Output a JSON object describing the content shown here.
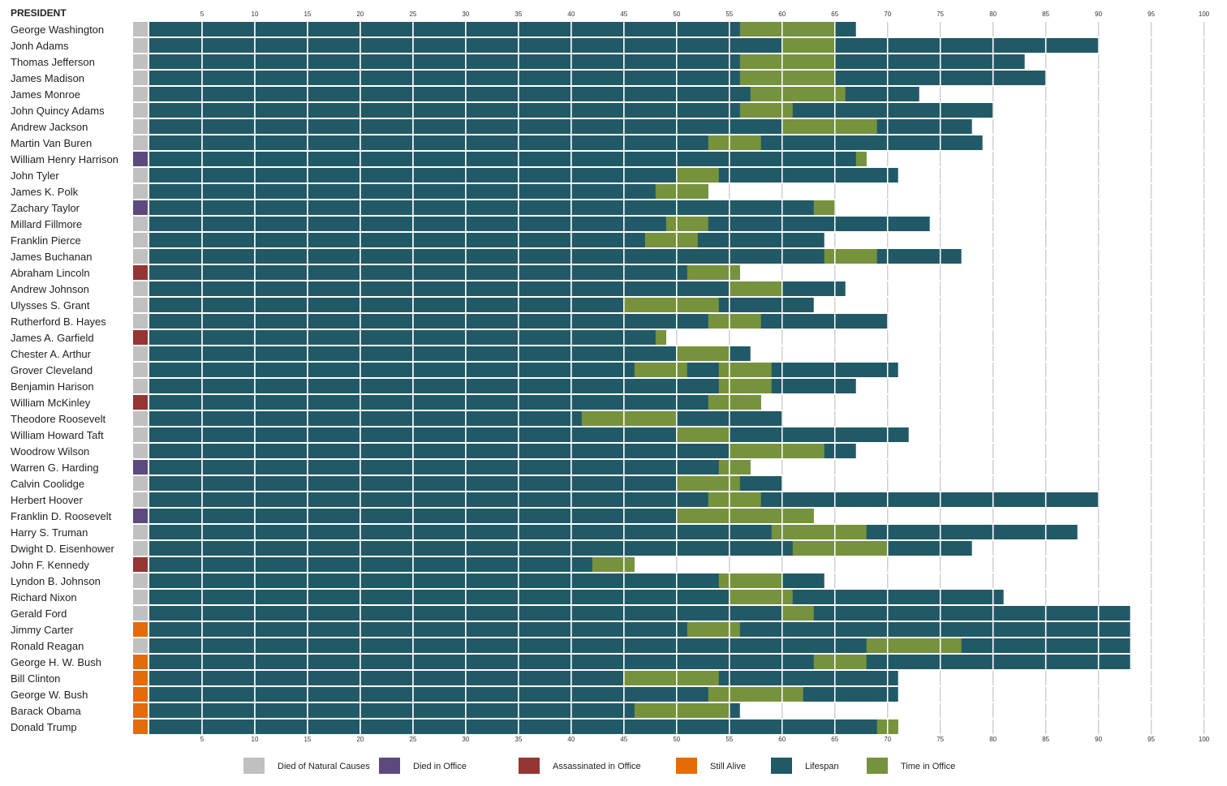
{
  "chart_data": {
    "type": "bar",
    "column_header": "PRESIDENT",
    "x_ticks": [
      5,
      10,
      15,
      20,
      25,
      30,
      35,
      40,
      45,
      50,
      55,
      60,
      65,
      70,
      75,
      80,
      85,
      90,
      95,
      100
    ],
    "xlim": [
      0,
      100
    ],
    "grid": "vertical",
    "legend_position": "bottom",
    "colors": {
      "natural": "#c0c0c0",
      "died_in_office": "#5c4a7e",
      "assassinated": "#943634",
      "alive": "#e36c09",
      "lifespan": "#215967",
      "office": "#76923c",
      "grid": "#d0d0d0"
    },
    "legend": [
      {
        "key": "natural",
        "label": "Died of Natural Causes"
      },
      {
        "key": "died_in_office",
        "label": "Died in Office"
      },
      {
        "key": "assassinated",
        "label": "Assassinated in Office"
      },
      {
        "key": "alive",
        "label": "Still Alive"
      },
      {
        "key": "lifespan",
        "label": "Lifespan"
      },
      {
        "key": "office",
        "label": "Time in Office"
      }
    ],
    "series": [
      {
        "name": "Lifespan",
        "field": "age"
      },
      {
        "name": "Time in Office",
        "field": "terms"
      }
    ],
    "presidents": [
      {
        "name": "George Washington",
        "status": "natural",
        "age": 67,
        "terms": [
          [
            56,
            65
          ]
        ]
      },
      {
        "name": "Jonh Adams",
        "status": "natural",
        "age": 90,
        "terms": [
          [
            60,
            65
          ]
        ]
      },
      {
        "name": "Thomas Jefferson",
        "status": "natural",
        "age": 83,
        "terms": [
          [
            56,
            65
          ]
        ]
      },
      {
        "name": "James Madison",
        "status": "natural",
        "age": 85,
        "terms": [
          [
            56,
            65
          ]
        ]
      },
      {
        "name": "James Monroe",
        "status": "natural",
        "age": 73,
        "terms": [
          [
            57,
            66
          ]
        ]
      },
      {
        "name": "John Quincy Adams",
        "status": "natural",
        "age": 80,
        "terms": [
          [
            56,
            61
          ]
        ]
      },
      {
        "name": "Andrew Jackson",
        "status": "natural",
        "age": 78,
        "terms": [
          [
            60,
            69
          ]
        ]
      },
      {
        "name": "Martin Van Buren",
        "status": "natural",
        "age": 79,
        "terms": [
          [
            53,
            58
          ]
        ]
      },
      {
        "name": "William Henry Harrison",
        "status": "died_in_office",
        "age": 68,
        "terms": [
          [
            67,
            68
          ]
        ]
      },
      {
        "name": "John Tyler",
        "status": "natural",
        "age": 71,
        "terms": [
          [
            50,
            54
          ]
        ]
      },
      {
        "name": "James K. Polk",
        "status": "natural",
        "age": 53,
        "terms": [
          [
            48,
            53
          ]
        ]
      },
      {
        "name": "Zachary Taylor",
        "status": "died_in_office",
        "age": 65,
        "terms": [
          [
            63,
            65
          ]
        ]
      },
      {
        "name": "Millard Fillmore",
        "status": "natural",
        "age": 74,
        "terms": [
          [
            49,
            53
          ]
        ]
      },
      {
        "name": "Franklin Pierce",
        "status": "natural",
        "age": 64,
        "terms": [
          [
            47,
            52
          ]
        ]
      },
      {
        "name": "James Buchanan",
        "status": "natural",
        "age": 77,
        "terms": [
          [
            64,
            69
          ]
        ]
      },
      {
        "name": "Abraham Lincoln",
        "status": "assassinated",
        "age": 56,
        "terms": [
          [
            51,
            56
          ]
        ]
      },
      {
        "name": "Andrew Johnson",
        "status": "natural",
        "age": 66,
        "terms": [
          [
            55,
            60
          ]
        ]
      },
      {
        "name": "Ulysses S. Grant",
        "status": "natural",
        "age": 63,
        "terms": [
          [
            45,
            54
          ]
        ]
      },
      {
        "name": "Rutherford B. Hayes",
        "status": "natural",
        "age": 70,
        "terms": [
          [
            53,
            58
          ]
        ]
      },
      {
        "name": "James A. Garfield",
        "status": "assassinated",
        "age": 49,
        "terms": [
          [
            48,
            49
          ]
        ]
      },
      {
        "name": "Chester A. Arthur",
        "status": "natural",
        "age": 57,
        "terms": [
          [
            50,
            55
          ]
        ]
      },
      {
        "name": "Grover Cleveland",
        "status": "natural",
        "age": 71,
        "terms": [
          [
            46,
            51
          ],
          [
            54,
            59
          ]
        ]
      },
      {
        "name": "Benjamin Harison",
        "status": "natural",
        "age": 67,
        "terms": [
          [
            54,
            59
          ]
        ]
      },
      {
        "name": "William McKinley",
        "status": "assassinated",
        "age": 58,
        "terms": [
          [
            53,
            58
          ]
        ]
      },
      {
        "name": "Theodore Roosevelt",
        "status": "natural",
        "age": 60,
        "terms": [
          [
            41,
            50
          ]
        ]
      },
      {
        "name": "William Howard Taft",
        "status": "natural",
        "age": 72,
        "terms": [
          [
            50,
            55
          ]
        ]
      },
      {
        "name": "Woodrow Wilson",
        "status": "natural",
        "age": 67,
        "terms": [
          [
            55,
            64
          ]
        ]
      },
      {
        "name": "Warren G. Harding",
        "status": "died_in_office",
        "age": 57,
        "terms": [
          [
            54,
            57
          ]
        ]
      },
      {
        "name": "Calvin Coolidge",
        "status": "natural",
        "age": 60,
        "terms": [
          [
            50,
            56
          ]
        ]
      },
      {
        "name": "Herbert Hoover",
        "status": "natural",
        "age": 90,
        "terms": [
          [
            53,
            58
          ]
        ]
      },
      {
        "name": "Franklin D. Roosevelt",
        "status": "died_in_office",
        "age": 63,
        "terms": [
          [
            50,
            63
          ]
        ]
      },
      {
        "name": "Harry S. Truman",
        "status": "natural",
        "age": 88,
        "terms": [
          [
            59,
            68
          ]
        ]
      },
      {
        "name": "Dwight D. Eisenhower",
        "status": "natural",
        "age": 78,
        "terms": [
          [
            61,
            70
          ]
        ]
      },
      {
        "name": "John F. Kennedy",
        "status": "assassinated",
        "age": 46,
        "terms": [
          [
            42,
            46
          ]
        ]
      },
      {
        "name": "Lyndon B. Johnson",
        "status": "natural",
        "age": 64,
        "terms": [
          [
            54,
            60
          ]
        ]
      },
      {
        "name": "Richard Nixon",
        "status": "natural",
        "age": 81,
        "terms": [
          [
            55,
            61
          ]
        ]
      },
      {
        "name": "Gerald Ford",
        "status": "natural",
        "age": 93,
        "terms": [
          [
            60,
            63
          ]
        ]
      },
      {
        "name": "Jimmy Carter",
        "status": "alive",
        "age": 93,
        "terms": [
          [
            51,
            56
          ]
        ]
      },
      {
        "name": "Ronald Reagan",
        "status": "natural",
        "age": 93,
        "terms": [
          [
            68,
            77
          ]
        ]
      },
      {
        "name": "George H. W. Bush",
        "status": "alive",
        "age": 93,
        "terms": [
          [
            63,
            68
          ]
        ]
      },
      {
        "name": "Bill Clinton",
        "status": "alive",
        "age": 71,
        "terms": [
          [
            45,
            54
          ]
        ]
      },
      {
        "name": "George W. Bush",
        "status": "alive",
        "age": 71,
        "terms": [
          [
            53,
            62
          ]
        ]
      },
      {
        "name": "Barack Obama",
        "status": "alive",
        "age": 56,
        "terms": [
          [
            46,
            55
          ]
        ]
      },
      {
        "name": "Donald Trump",
        "status": "alive",
        "age": 71,
        "terms": [
          [
            69,
            71
          ]
        ]
      }
    ]
  }
}
